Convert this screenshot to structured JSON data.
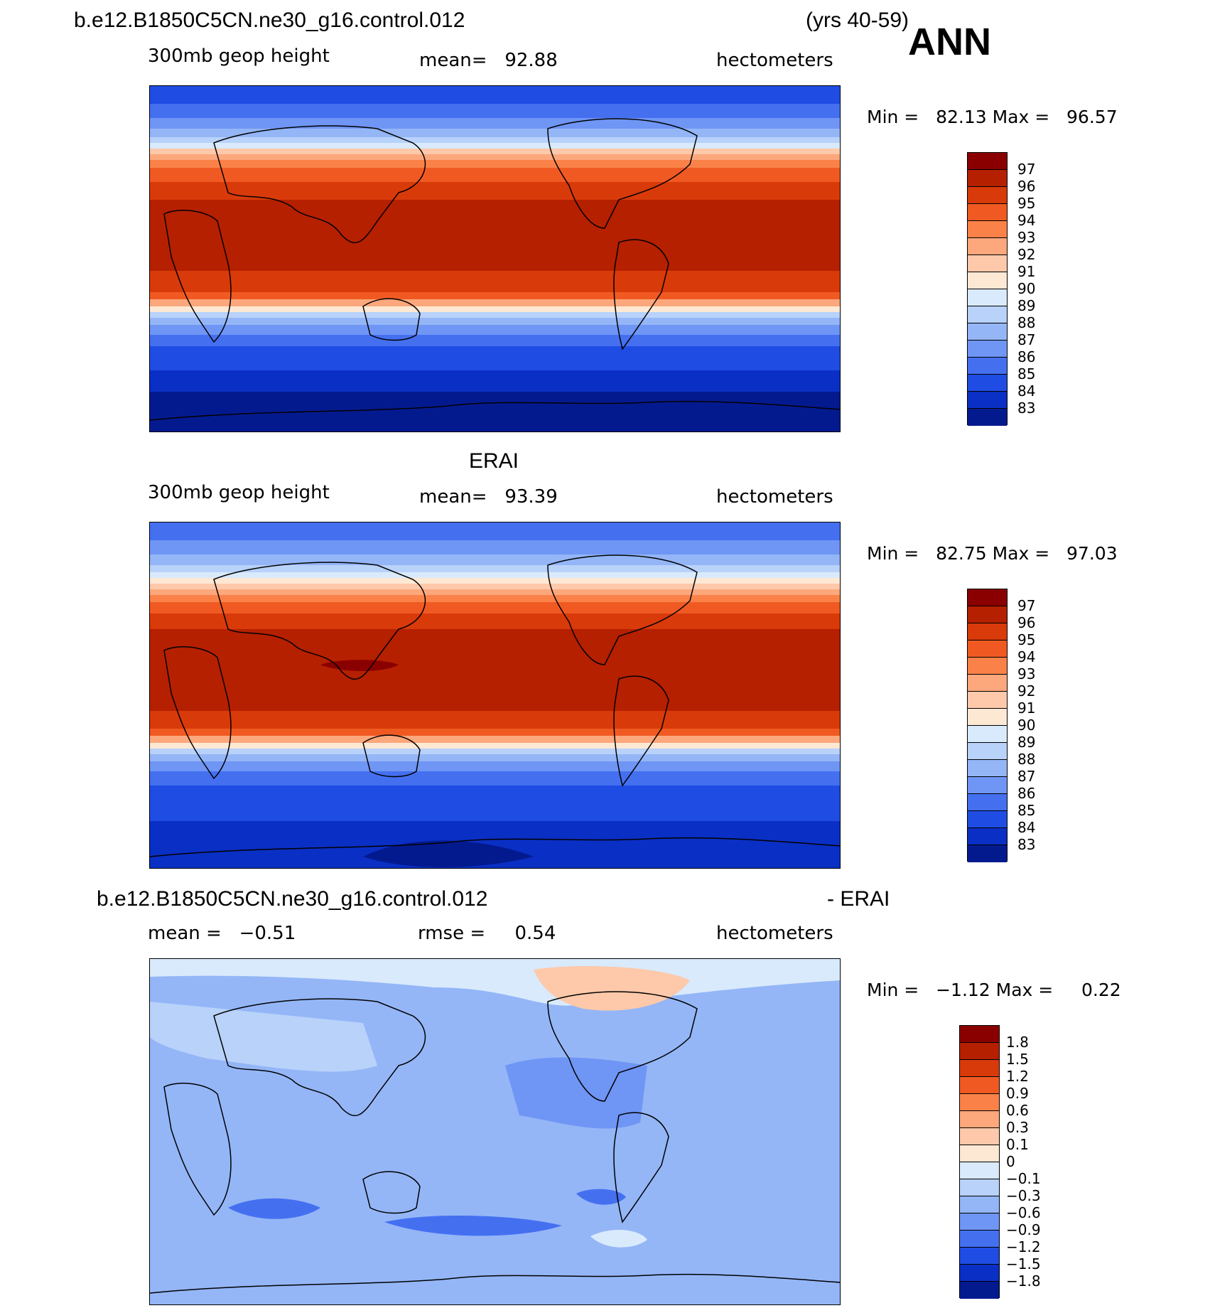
{
  "header": {
    "case_title": "b.e12.B1850C5CN.ne30_g16.control.012",
    "years": "(yrs 40-59)",
    "season": "ANN"
  },
  "panels": [
    {
      "title": "",
      "variable": "300mb geop height",
      "stat": "mean=   92.88",
      "units": "hectometers",
      "minmax": "Min =   82.13 Max =   96.57",
      "colorbar_labels": [
        "97",
        "96",
        "95",
        "94",
        "93",
        "92",
        "91",
        "90",
        "89",
        "88",
        "87",
        "86",
        "85",
        "84",
        "83"
      ]
    },
    {
      "title": "ERAI",
      "variable": "300mb geop height",
      "stat": "mean=   93.39",
      "units": "hectometers",
      "minmax": "Min =   82.75 Max =   97.03",
      "colorbar_labels": [
        "97",
        "96",
        "95",
        "94",
        "93",
        "92",
        "91",
        "90",
        "89",
        "88",
        "87",
        "86",
        "85",
        "84",
        "83"
      ]
    },
    {
      "title": "b.e12.B1850C5CN.ne30_g16.control.012",
      "title_right": "- ERAI",
      "variable": "mean =   −0.51",
      "stat": "rmse =     0.54",
      "units": "hectometers",
      "minmax": "Min =   −1.12 Max =     0.22",
      "colorbar_labels": [
        "1.8",
        "1.5",
        "1.2",
        "0.9",
        "0.6",
        "0.3",
        "0.1",
        "0",
        "−0.1",
        "−0.3",
        "−0.6",
        "−0.9",
        "−1.2",
        "−1.5",
        "−1.8"
      ]
    }
  ],
  "colors": {
    "abs_scale": [
      "#8a0000",
      "#b52000",
      "#d93a0a",
      "#f05a22",
      "#fa8249",
      "#fca77c",
      "#fdc9aa",
      "#fde8d4",
      "#d9eafc",
      "#b8d2fa",
      "#94b6f7",
      "#6f95f5",
      "#4470f0",
      "#1f4de3",
      "#0a2fc4",
      "#031a8f"
    ],
    "diff_scale": [
      "#8a0000",
      "#b52000",
      "#d93a0a",
      "#f05a22",
      "#fa8249",
      "#fca77c",
      "#fdc9aa",
      "#fde8d4",
      "#d9eafc",
      "#b8d2fa",
      "#94b6f7",
      "#6f95f5",
      "#4470f0",
      "#1f4de3",
      "#0a2fc4",
      "#031a8f"
    ]
  }
}
